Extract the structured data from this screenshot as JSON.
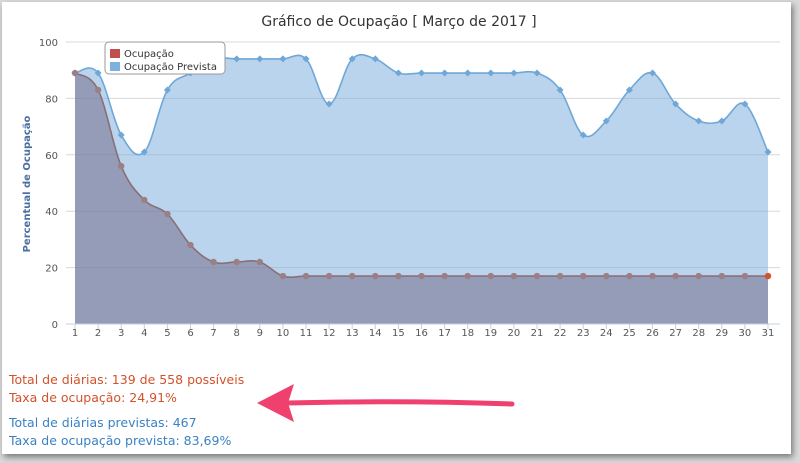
{
  "chart_data": {
    "type": "area",
    "title": "Gráfico de Ocupação [ Março de 2017 ]",
    "ylabel": "Percentual de Ocupação",
    "xlabel": "",
    "ylim": [
      0,
      100
    ],
    "yticks": [
      0,
      20,
      40,
      60,
      80,
      100
    ],
    "categories": [
      "1",
      "2",
      "3",
      "4",
      "5",
      "6",
      "7",
      "8",
      "9",
      "10",
      "11",
      "12",
      "13",
      "14",
      "15",
      "16",
      "17",
      "18",
      "19",
      "20",
      "21",
      "22",
      "23",
      "24",
      "25",
      "26",
      "27",
      "28",
      "29",
      "30",
      "31"
    ],
    "grid": true,
    "legend_position": "top-left",
    "series": [
      {
        "name": "Ocupação",
        "color": "#c0504d",
        "values": [
          89,
          83,
          56,
          44,
          39,
          28,
          22,
          22,
          22,
          17,
          17,
          17,
          17,
          17,
          17,
          17,
          17,
          17,
          17,
          17,
          17,
          17,
          17,
          17,
          17,
          17,
          17,
          17,
          17,
          17,
          17
        ]
      },
      {
        "name": "Ocupação Prevista",
        "color": "#7fb1dc",
        "values": [
          89,
          89,
          67,
          61,
          83,
          89,
          94,
          94,
          94,
          94,
          94,
          78,
          94,
          94,
          89,
          89,
          89,
          89,
          89,
          89,
          89,
          83,
          67,
          72,
          83,
          89,
          78,
          72,
          72,
          78,
          61
        ]
      }
    ]
  },
  "stats": {
    "total_diarias": "Total de diárias: 139 de 558 possíveis",
    "taxa_ocupacao": "Taxa de ocupação: 24,91%",
    "total_previstas": "Total de diárias previstas: 467",
    "taxa_prevista": "Taxa de ocupação prevista: 83,69%"
  },
  "annotation": {
    "arrow_color": "#f0406e"
  }
}
